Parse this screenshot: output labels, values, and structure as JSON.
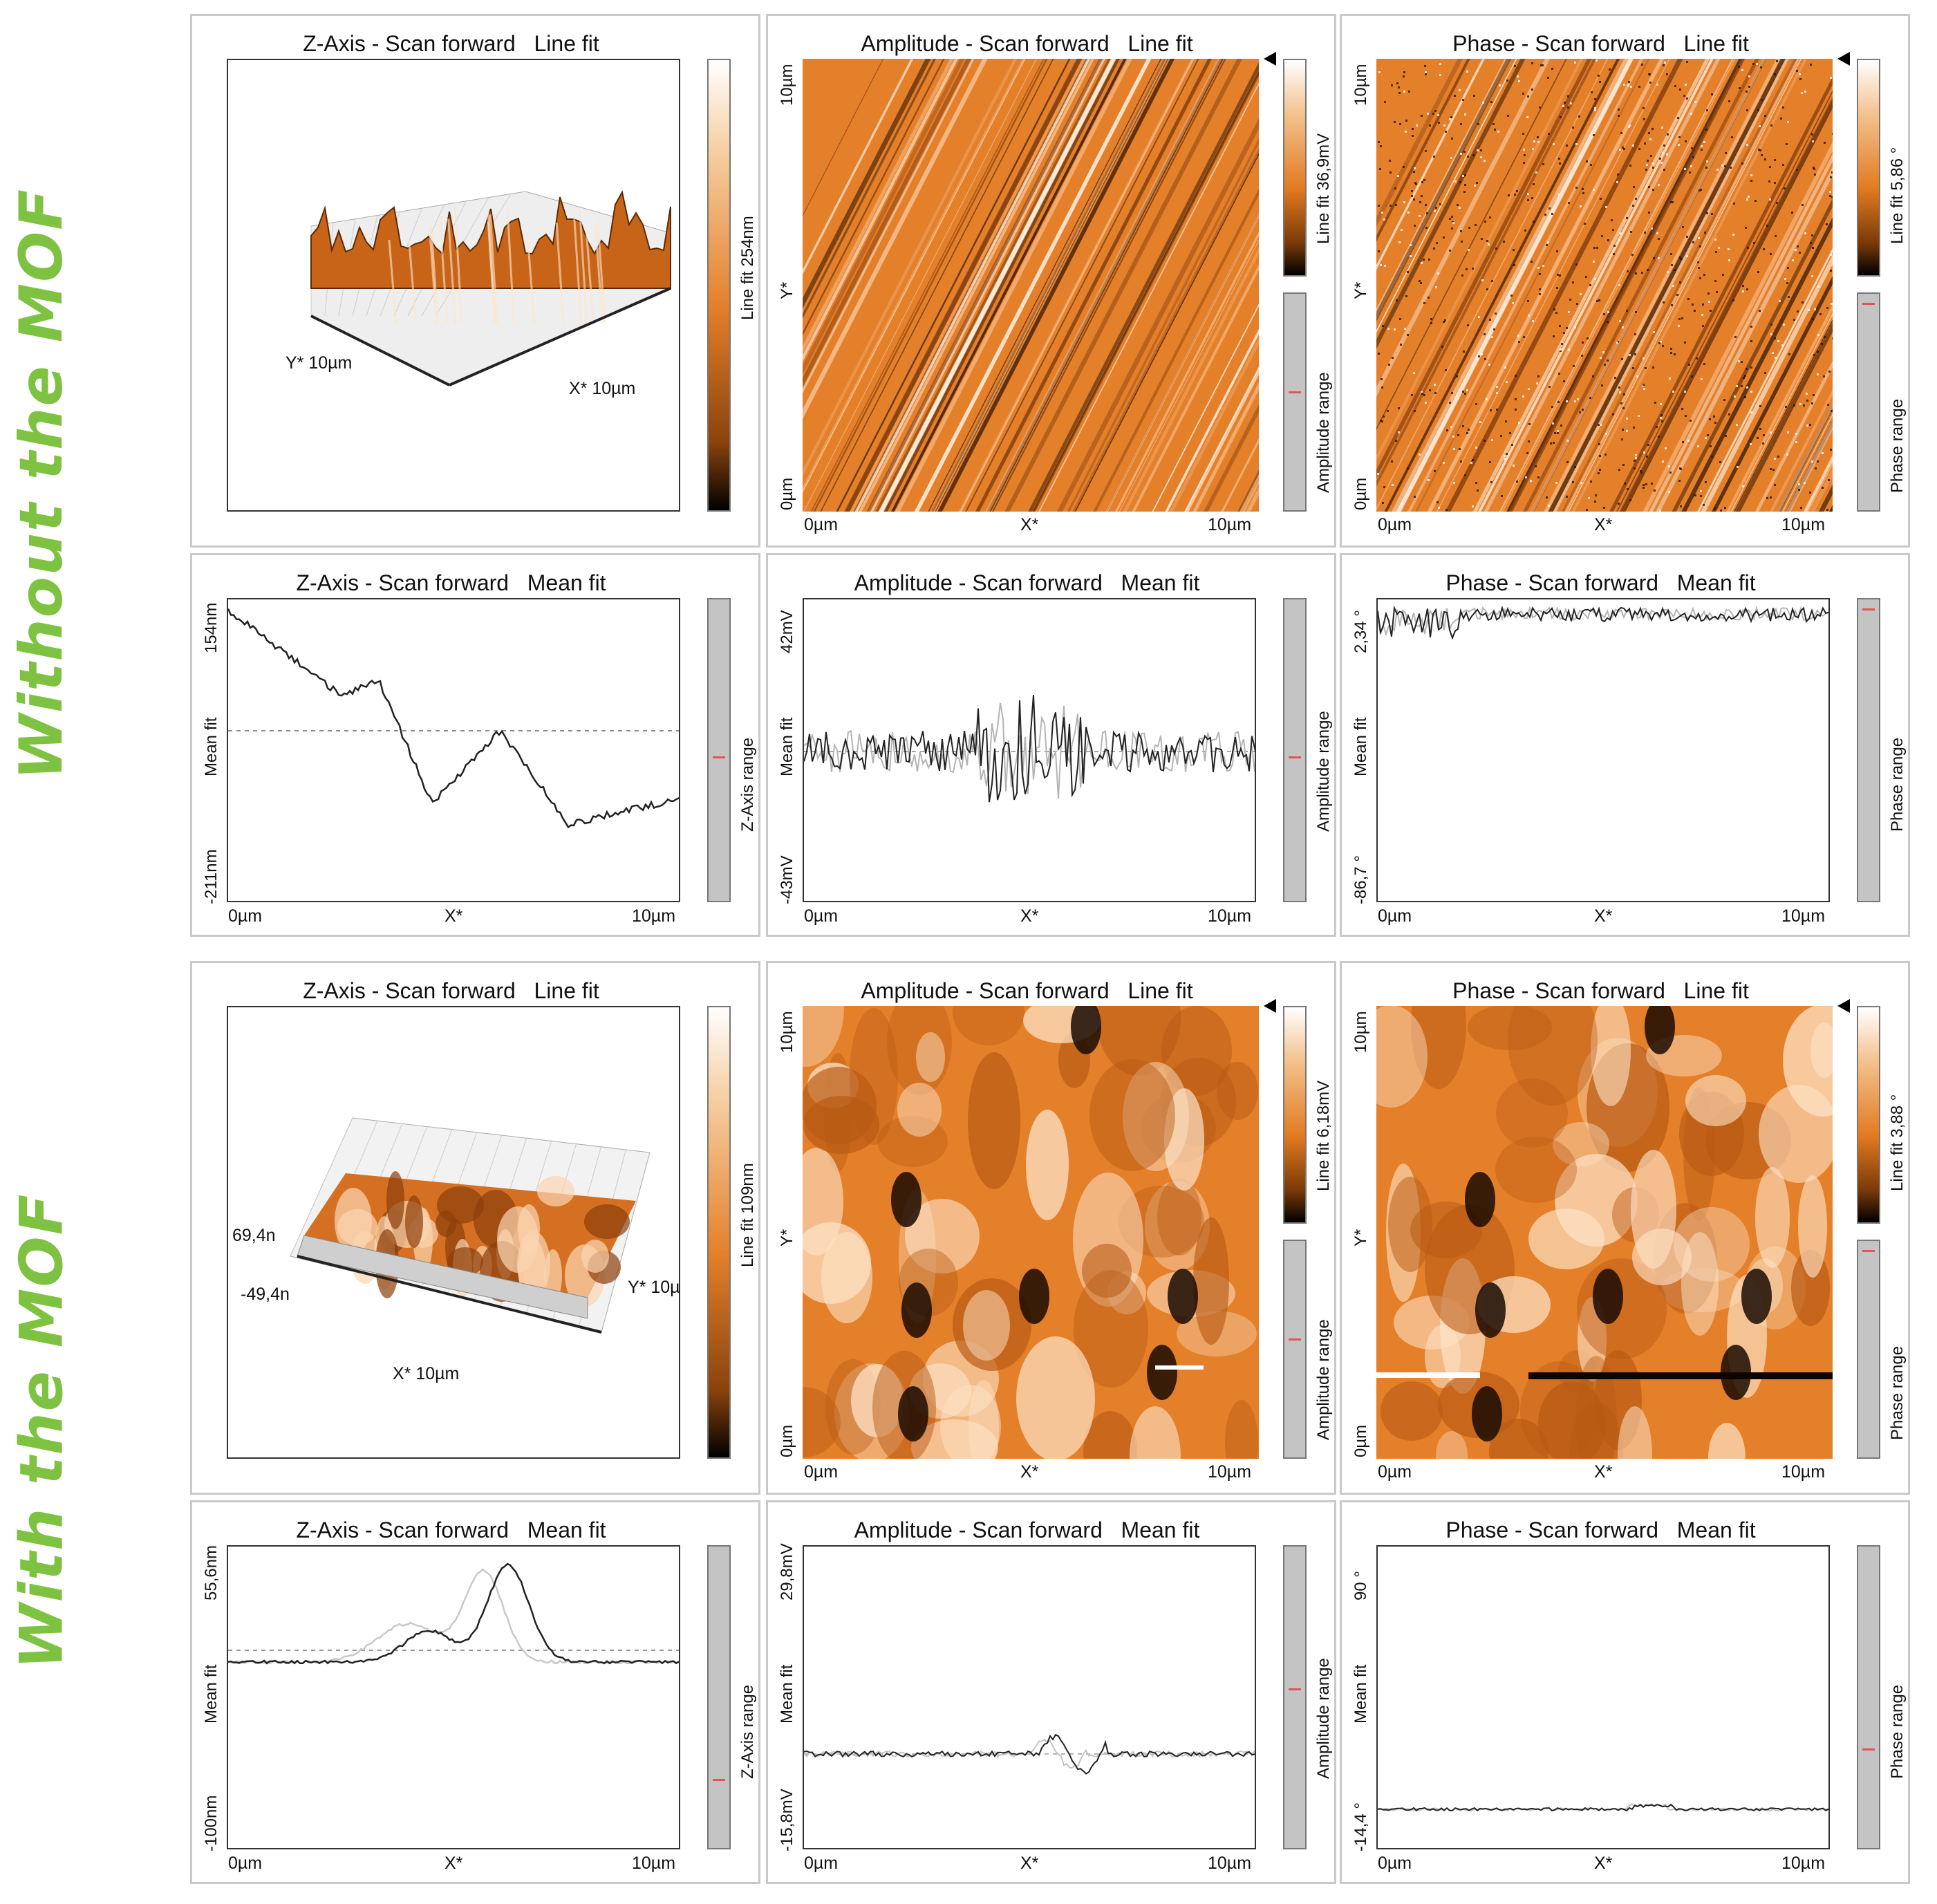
{
  "section_labels": {
    "without": "Without the MOF",
    "with": "With the MOF"
  },
  "colors": {
    "accent_green": "#7ec242",
    "orange": "#e07a1f",
    "range_mark": "#e05555"
  },
  "sections": [
    {
      "key": "without",
      "line_fit": {
        "zaxis": {
          "title": "Z-Axis - Scan forward   Line fit",
          "colorbar_label": "Line fit 254nm",
          "x_label": "X* 10µm",
          "y_label": "Y* 10µm"
        },
        "amplitude": {
          "title": "Amplitude - Scan forward   Line fit",
          "colorbar_label": "Line fit 36,9mV",
          "range_label": "Amplitude range",
          "x0": "0µm",
          "xmid": "X*",
          "x1": "10µm",
          "y0": "0µm",
          "ymid": "Y*",
          "y1": "10µm"
        },
        "phase": {
          "title": "Phase - Scan forward   Line fit",
          "colorbar_label": "Line fit 5,86 °",
          "range_label": "Phase range",
          "x0": "0µm",
          "xmid": "X*",
          "x1": "10µm",
          "y0": "0µm",
          "ymid": "Y*",
          "y1": "10µm"
        }
      },
      "mean_fit": {
        "zaxis": {
          "title": "Z-Axis - Scan forward   Mean fit",
          "y_top": "154nm",
          "y_mid": "Mean fit",
          "y_bot": "-211nm",
          "x0": "0µm",
          "xmid": "X*",
          "x1": "10µm",
          "range_label": "Z-Axis range"
        },
        "amplitude": {
          "title": "Amplitude - Scan forward   Mean fit",
          "y_top": "42mV",
          "y_mid": "Mean fit",
          "y_bot": "-43mV",
          "x0": "0µm",
          "xmid": "X*",
          "x1": "10µm",
          "range_label": "Amplitude range"
        },
        "phase": {
          "title": "Phase - Scan forward   Mean fit",
          "y_top": "2,34 °",
          "y_mid": "Mean fit",
          "y_bot": "-86,7 °",
          "x0": "0µm",
          "xmid": "X*",
          "x1": "10µm",
          "range_label": "Phase range"
        }
      }
    },
    {
      "key": "with",
      "line_fit": {
        "zaxis": {
          "title": "Z-Axis - Scan forward   Line fit",
          "colorbar_label": "Line fit 109nm",
          "x_label": "X* 10µm",
          "y_label": "Y* 10µ",
          "z_top": "69,4n",
          "z_bot": "-49,4n"
        },
        "amplitude": {
          "title": "Amplitude - Scan forward   Line fit",
          "colorbar_label": "Line fit 6,18mV",
          "range_label": "Amplitude range",
          "x0": "0µm",
          "xmid": "X*",
          "x1": "10µm",
          "y0": "0µm",
          "ymid": "Y*",
          "y1": "10µm"
        },
        "phase": {
          "title": "Phase - Scan forward   Line fit",
          "colorbar_label": "Line fit 3,88 °",
          "range_label": "Phase range",
          "x0": "0µm",
          "xmid": "X*",
          "x1": "10µm",
          "y0": "0µm",
          "ymid": "Y*",
          "y1": "10µm"
        }
      },
      "mean_fit": {
        "zaxis": {
          "title": "Z-Axis - Scan forward   Mean fit",
          "y_top": "55,6nm",
          "y_mid": "Mean fit",
          "y_bot": "-100nm",
          "x0": "0µm",
          "xmid": "X*",
          "x1": "10µm",
          "range_label": "Z-Axis range"
        },
        "amplitude": {
          "title": "Amplitude - Scan forward   Mean fit",
          "y_top": "29,8mV",
          "y_mid": "Mean fit",
          "y_bot": "-15,8mV",
          "x0": "0µm",
          "xmid": "X*",
          "x1": "10µm",
          "range_label": "Amplitude range"
        },
        "phase": {
          "title": "Phase - Scan forward   Mean fit",
          "y_top": "90 °",
          "y_mid": "Mean fit",
          "y_bot": "-14,4 °",
          "x0": "0µm",
          "xmid": "X*",
          "x1": "10µm",
          "range_label": "Phase range"
        }
      }
    }
  ]
}
